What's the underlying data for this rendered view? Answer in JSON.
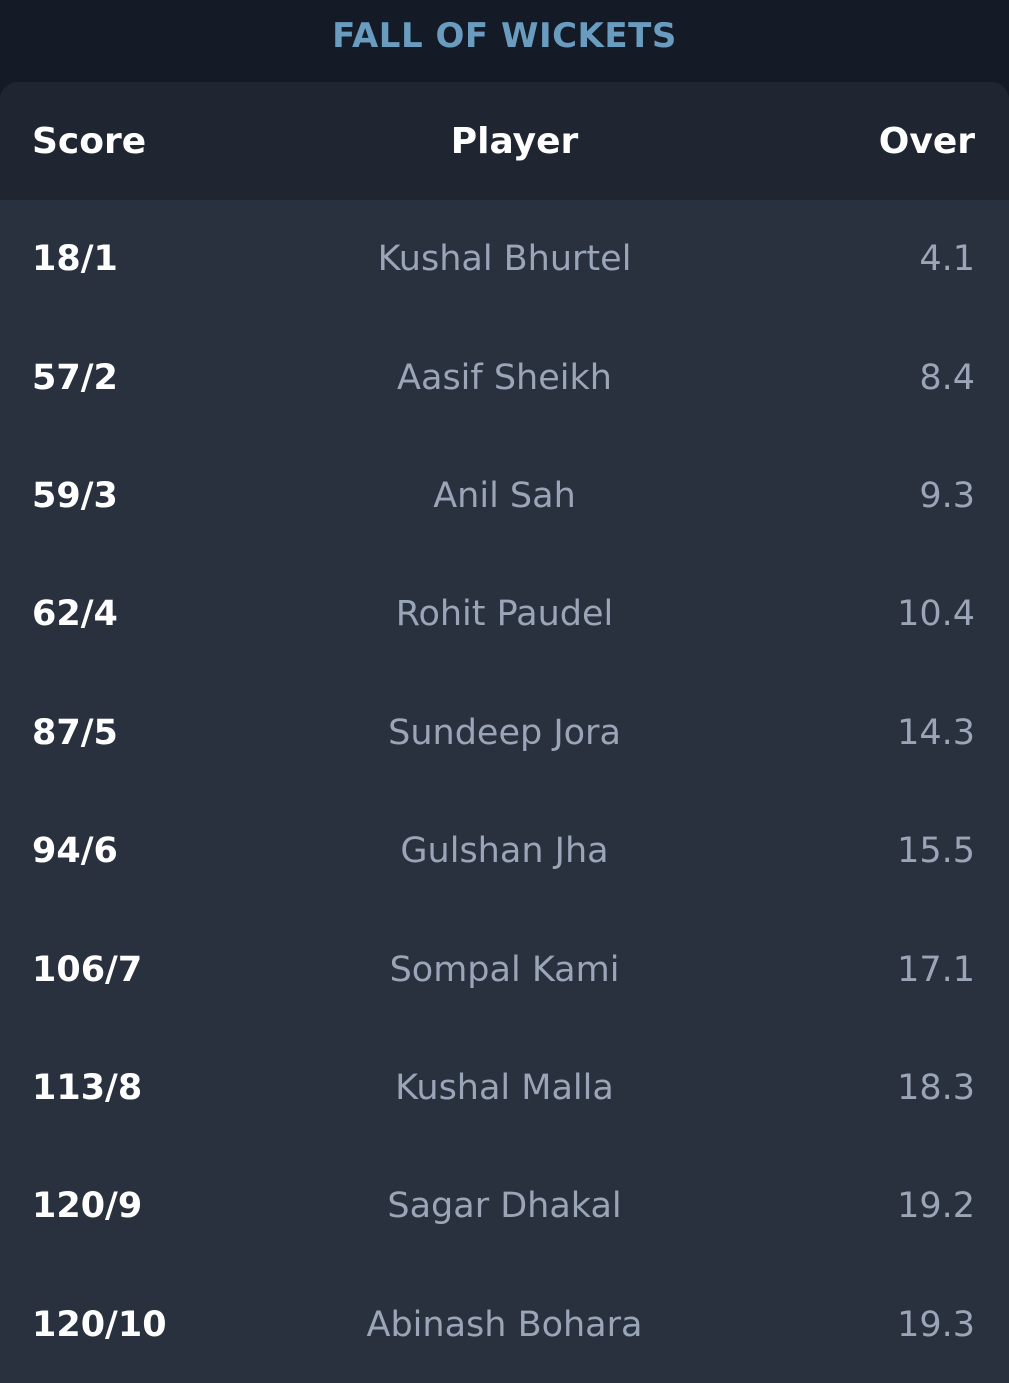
{
  "title": "FALL OF WICKETS",
  "columns": {
    "score": "Score",
    "player": "Player",
    "over": "Over"
  },
  "rows": [
    {
      "score": "18/1",
      "player": "Kushal Bhurtel",
      "over": "4.1"
    },
    {
      "score": "57/2",
      "player": "Aasif Sheikh",
      "over": "8.4"
    },
    {
      "score": "59/3",
      "player": "Anil Sah",
      "over": "9.3"
    },
    {
      "score": "62/4",
      "player": "Rohit Paudel",
      "over": "10.4"
    },
    {
      "score": "87/5",
      "player": "Sundeep Jora",
      "over": "14.3"
    },
    {
      "score": "94/6",
      "player": "Gulshan Jha",
      "over": "15.5"
    },
    {
      "score": "106/7",
      "player": "Sompal Kami",
      "over": "17.1"
    },
    {
      "score": "113/8",
      "player": "Kushal Malla",
      "over": "18.3"
    },
    {
      "score": "120/9",
      "player": "Sagar Dhakal",
      "over": "19.2"
    },
    {
      "score": "120/10",
      "player": "Abinash Bohara",
      "over": "19.3"
    }
  ],
  "colors": {
    "background": "#141b27",
    "card": "#29313e",
    "header": "#1f2632",
    "title": "#6a9cc0",
    "primary_text": "#ffffff",
    "secondary_text": "#9aa5b8"
  }
}
